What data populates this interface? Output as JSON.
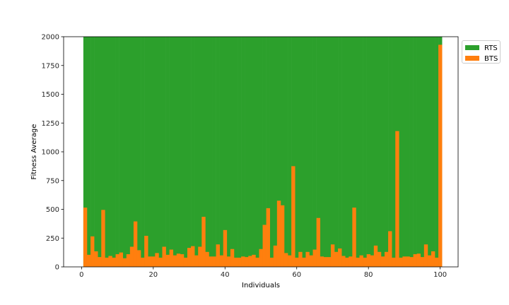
{
  "chart_data": {
    "type": "bar",
    "xlabel": "Individuals",
    "ylabel": "Fitness Average",
    "xlim": [
      -5,
      105
    ],
    "ylim": [
      0,
      2000
    ],
    "xticks": [
      0,
      20,
      40,
      60,
      80,
      100
    ],
    "yticks": [
      0,
      250,
      500,
      750,
      1000,
      1250,
      1500,
      1750,
      2000
    ],
    "legend_position": "outside-top-right",
    "x_start": 1,
    "series": [
      {
        "name": "RTS",
        "color": "#2ca02c",
        "values": [
          2000,
          2000,
          2000,
          2000,
          2000,
          2000,
          2000,
          2000,
          2000,
          2000,
          2000,
          2000,
          2000,
          2000,
          2000,
          2000,
          2000,
          2000,
          2000,
          2000,
          2000,
          2000,
          2000,
          2000,
          2000,
          2000,
          2000,
          2000,
          2000,
          2000,
          2000,
          2000,
          2000,
          2000,
          2000,
          2000,
          2000,
          2000,
          2000,
          2000,
          2000,
          2000,
          2000,
          2000,
          2000,
          2000,
          2000,
          2000,
          2000,
          2000,
          2000,
          2000,
          2000,
          2000,
          2000,
          2000,
          2000,
          2000,
          2000,
          2000,
          2000,
          2000,
          2000,
          2000,
          2000,
          2000,
          2000,
          2000,
          2000,
          2000,
          2000,
          2000,
          2000,
          2000,
          2000,
          2000,
          2000,
          2000,
          2000,
          2000,
          2000,
          2000,
          2000,
          2000,
          2000,
          2000,
          2000,
          2000,
          2000,
          2000,
          2000,
          2000,
          2000,
          2000,
          2000,
          2000,
          2000,
          2000,
          2000,
          2000
        ]
      },
      {
        "name": "BTS",
        "color": "#ff7f0e",
        "values": [
          515,
          105,
          265,
          135,
          85,
          495,
          80,
          95,
          80,
          110,
          125,
          75,
          110,
          175,
          395,
          145,
          80,
          270,
          90,
          90,
          120,
          80,
          175,
          105,
          150,
          100,
          115,
          110,
          80,
          165,
          180,
          100,
          175,
          435,
          130,
          90,
          90,
          195,
          100,
          320,
          90,
          155,
          80,
          80,
          90,
          85,
          95,
          105,
          80,
          155,
          365,
          510,
          80,
          185,
          575,
          535,
          120,
          100,
          875,
          80,
          130,
          80,
          130,
          100,
          150,
          425,
          90,
          85,
          85,
          195,
          130,
          160,
          95,
          80,
          90,
          515,
          80,
          100,
          80,
          110,
          100,
          185,
          130,
          90,
          130,
          310,
          80,
          1180,
          80,
          90,
          90,
          85,
          110,
          115,
          85,
          195,
          100,
          135,
          80,
          1930
        ]
      }
    ]
  }
}
